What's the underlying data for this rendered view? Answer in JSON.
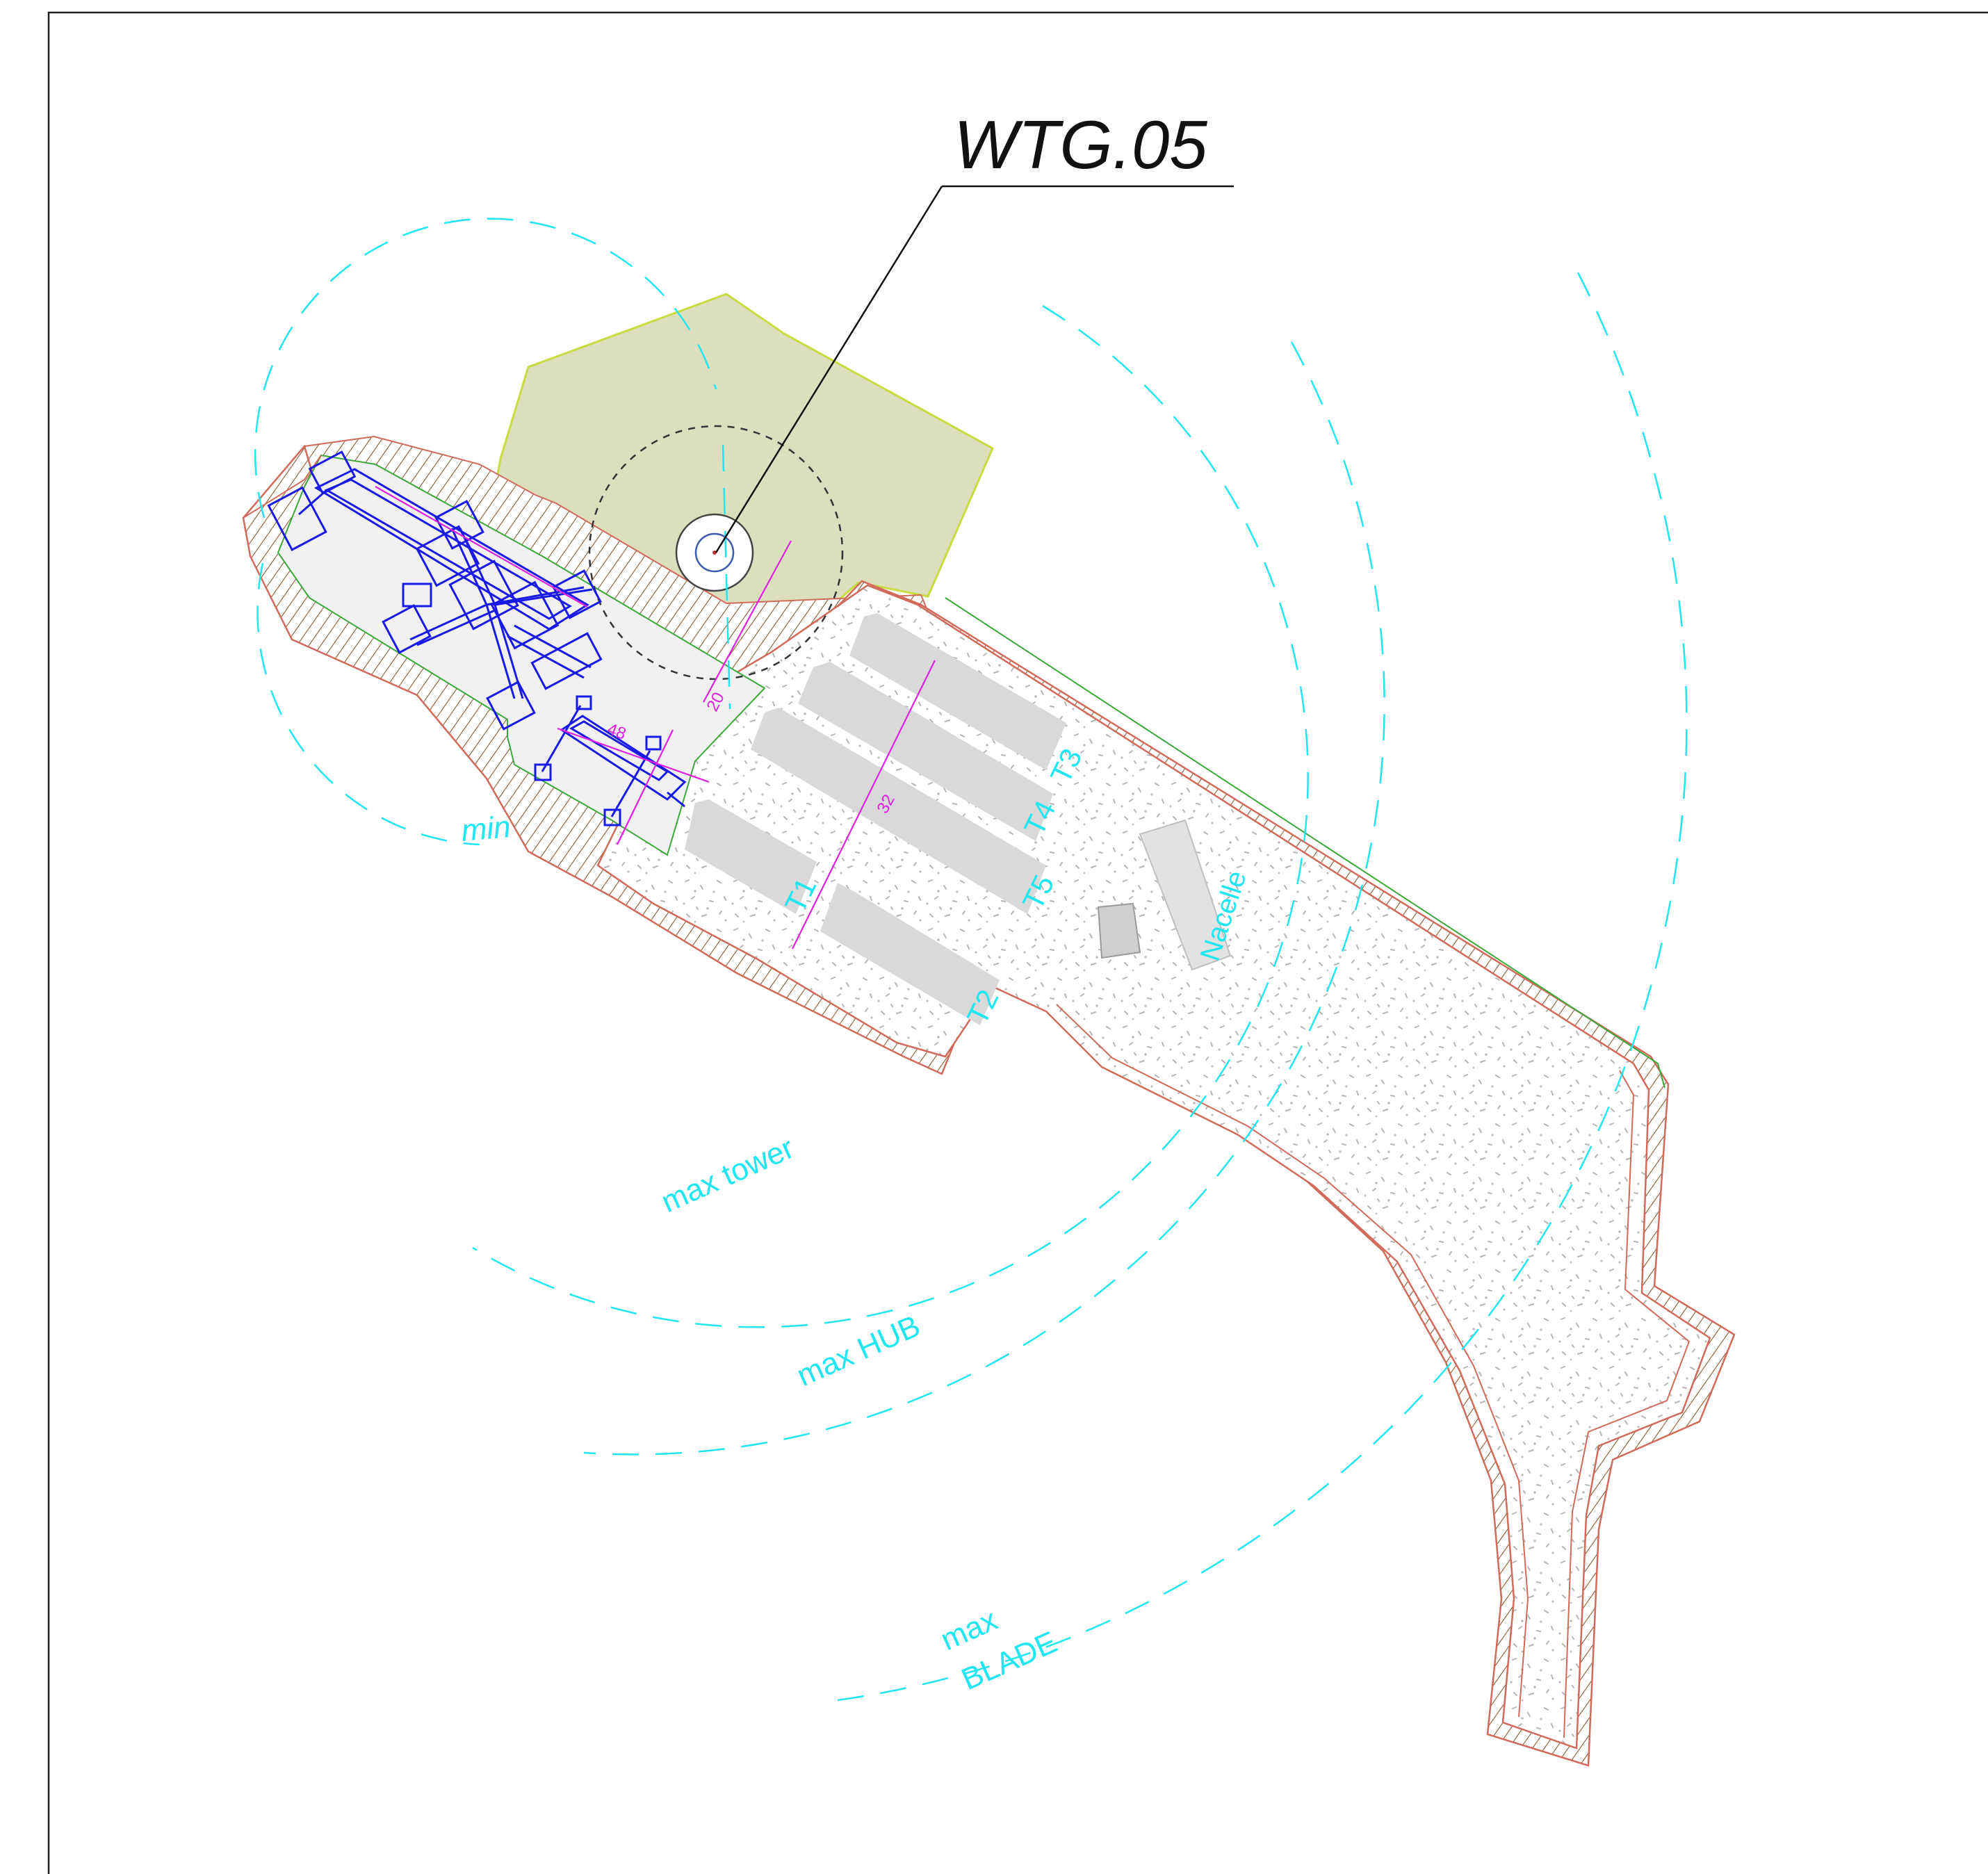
{
  "drawing": {
    "title": "WTG.05",
    "radius_labels": {
      "min": "min",
      "max_tower": "max tower",
      "max_hub": "max HUB",
      "max_blade_line1": "max",
      "max_blade_line2": "BLADE"
    },
    "storage_labels": {
      "t1": "T1",
      "t2": "T2",
      "t3": "T3",
      "t4": "T4",
      "t5": "T5",
      "nacelle": "Nacelle"
    },
    "dimensions": {
      "d20": "20",
      "d48": "48",
      "d32": "32"
    }
  },
  "colors": {
    "frame": "#222222",
    "foundation_area": "#dcdfbd",
    "foundation_outline": "#c8dc40",
    "platform_fill": "#f1f1f1",
    "gravel_speckle": "#b8b8b8",
    "storage_zone": "#d9d9d9",
    "crane": "#1a1ae6",
    "radius_lines": "#1fe6f0",
    "dimension_lines": "#e020e0",
    "embankment_red": "#d06a5a",
    "embankment_green": "#3aa83a",
    "embankment_brown": "#8a5a32"
  }
}
